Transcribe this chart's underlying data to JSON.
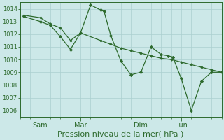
{
  "background_color": "#cce8e8",
  "grid_color": "#aacfcf",
  "line_color": "#2d6a2d",
  "ylim": [
    1005.5,
    1014.5
  ],
  "yticks": [
    1006,
    1007,
    1008,
    1009,
    1010,
    1011,
    1012,
    1013,
    1014
  ],
  "xlabel": "Pression niveau de la mer( hPa )",
  "xlabel_fontsize": 8,
  "xtick_labels": [
    "Sam",
    "Mar",
    "Dim",
    "Lun"
  ],
  "xtick_positions": [
    24,
    72,
    144,
    192
  ],
  "xlim": [
    0,
    240
  ],
  "series1_x": [
    4,
    24,
    36,
    48,
    60,
    72,
    84,
    96,
    100,
    108,
    120,
    132,
    144,
    156,
    168,
    176,
    182,
    192,
    204,
    216,
    228,
    240
  ],
  "series1_y": [
    1013.4,
    1013.0,
    1012.7,
    1011.8,
    1010.8,
    1012.1,
    1014.3,
    1013.9,
    1013.8,
    1011.9,
    1009.9,
    1008.8,
    1009.0,
    1011.0,
    1010.4,
    1010.3,
    1010.2,
    1008.5,
    1006.0,
    1008.3,
    1009.0,
    1009.0
  ],
  "series2_x": [
    4,
    24,
    36,
    48,
    60,
    72,
    96,
    108,
    120,
    132,
    144,
    156,
    168,
    180,
    192,
    204,
    216,
    228,
    240
  ],
  "series2_y": [
    1013.5,
    1013.3,
    1012.8,
    1012.5,
    1011.5,
    1012.1,
    1011.5,
    1011.2,
    1010.9,
    1010.7,
    1010.5,
    1010.3,
    1010.1,
    1010.0,
    1009.8,
    1009.6,
    1009.4,
    1009.2,
    1009.0
  ],
  "minor_xtick_interval": 12,
  "ytick_fontsize": 6,
  "xtick_fontsize": 7
}
